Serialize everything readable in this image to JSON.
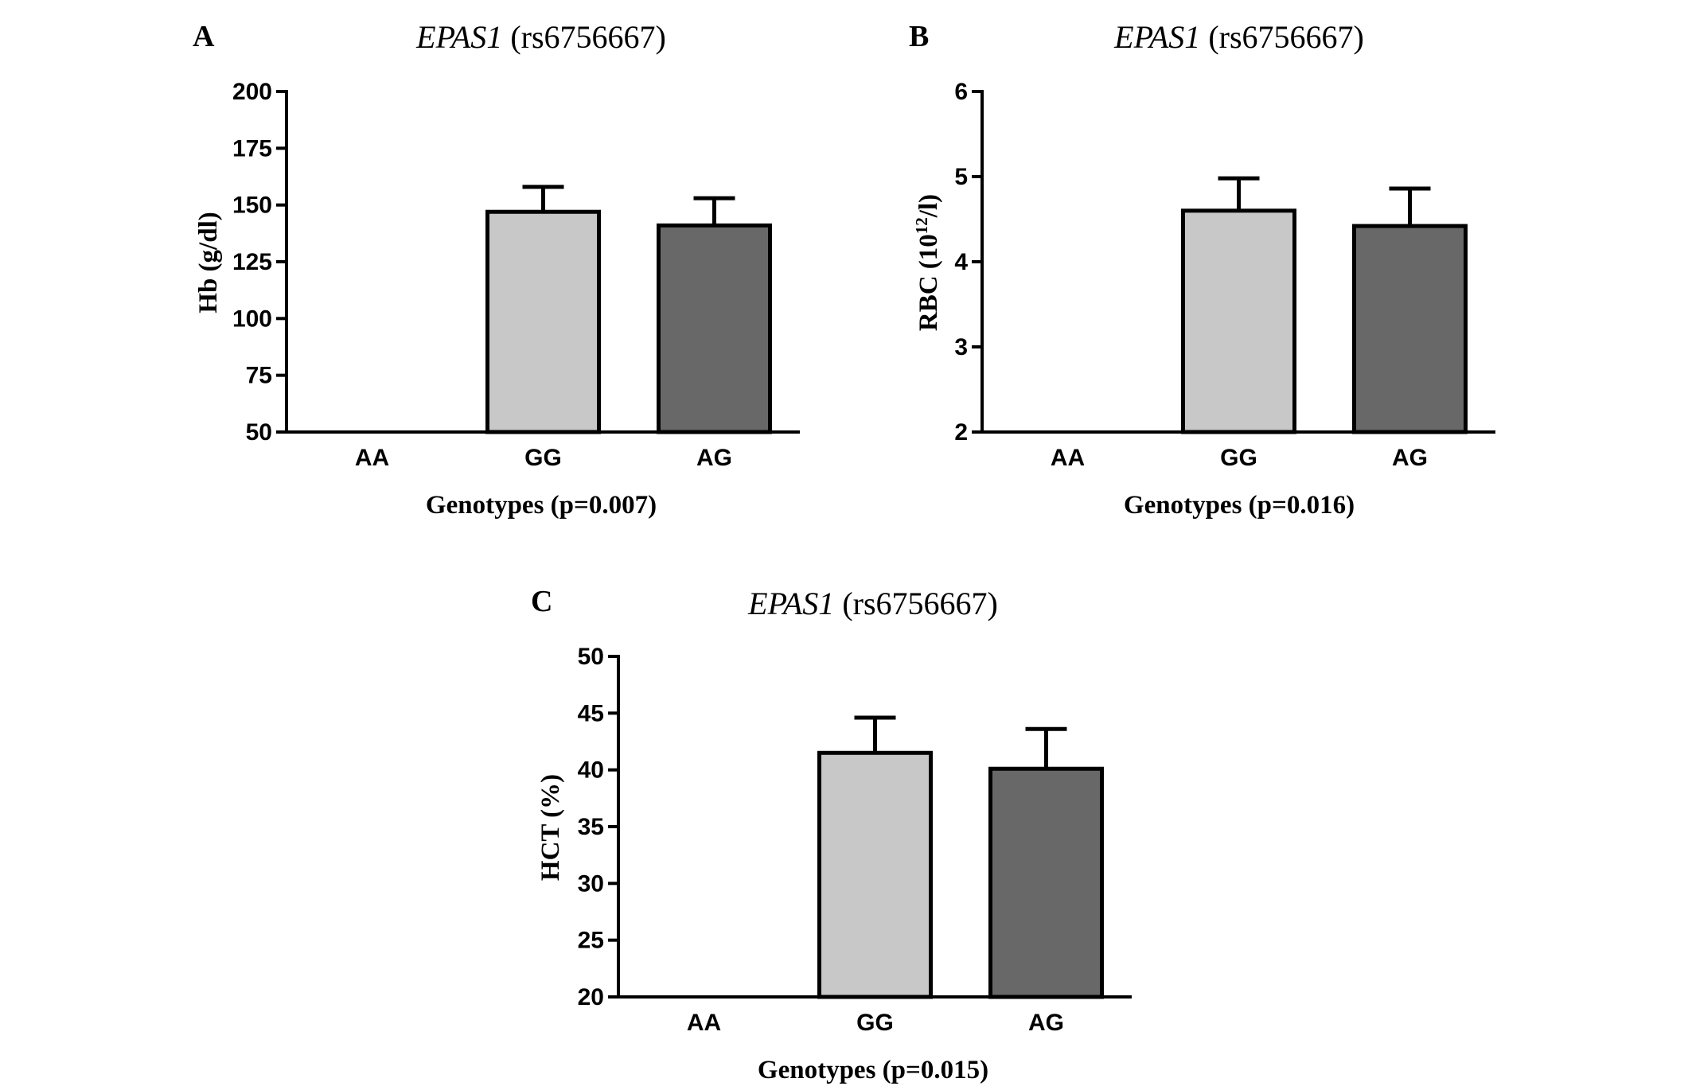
{
  "chart_data": [
    {
      "type": "bar",
      "panel": "A",
      "title_gene": "EPAS1",
      "title_rest": " (rs6756667)",
      "ylabel": "Hb (g/dl)",
      "xlabel": "Genotypes (p=0.007)",
      "categories": [
        "AA",
        "GG",
        "AG"
      ],
      "values": [
        null,
        147,
        141
      ],
      "errors": [
        null,
        11,
        12
      ],
      "colors": [
        "#cccccc",
        "#c8c8c8",
        "#686868"
      ],
      "ylim": [
        50,
        200
      ],
      "yticks": [
        50,
        75,
        100,
        125,
        150,
        175,
        200
      ],
      "grid": false
    },
    {
      "type": "bar",
      "panel": "B",
      "title_gene": "EPAS1",
      "title_rest": " (rs6756667)",
      "ylabel_main": "RBC (10",
      "ylabel_sup": "12",
      "ylabel_end": "/l)",
      "xlabel": "Genotypes (p=0.016)",
      "categories": [
        "AA",
        "GG",
        "AG"
      ],
      "values": [
        null,
        4.6,
        4.42
      ],
      "errors": [
        null,
        0.38,
        0.44
      ],
      "colors": [
        "#cccccc",
        "#c8c8c8",
        "#686868"
      ],
      "ylim": [
        2,
        6
      ],
      "yticks": [
        2,
        3,
        4,
        5,
        6
      ],
      "grid": false
    },
    {
      "type": "bar",
      "panel": "C",
      "title_gene": "EPAS1",
      "title_rest": " (rs6756667)",
      "ylabel": "HCT (%)",
      "xlabel": "Genotypes (p=0.015)",
      "categories": [
        "AA",
        "GG",
        "AG"
      ],
      "values": [
        null,
        41.5,
        40.1
      ],
      "errors": [
        null,
        3.1,
        3.5
      ],
      "colors": [
        "#cccccc",
        "#c8c8c8",
        "#686868"
      ],
      "ylim": [
        20,
        50
      ],
      "yticks": [
        20,
        25,
        30,
        35,
        40,
        45,
        50
      ],
      "grid": false
    }
  ]
}
